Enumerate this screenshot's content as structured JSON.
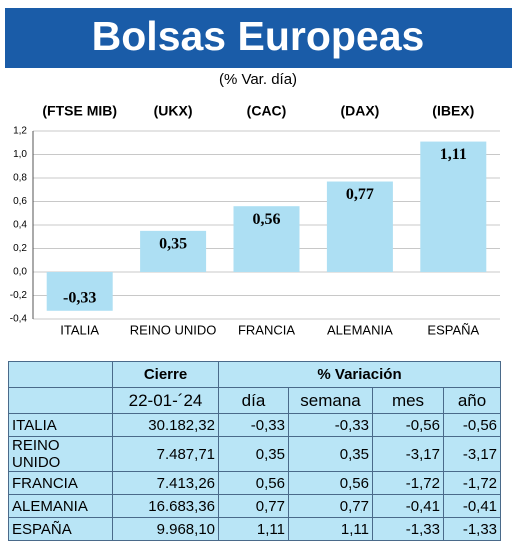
{
  "chart_data": {
    "type": "bar",
    "title": "Bolsas Europeas",
    "subtitle": "(% Var. día)",
    "index_labels": [
      "(FTSE MIB)",
      "(UKX)",
      "(CAC)",
      "(DAX)",
      "(IBEX)"
    ],
    "categories": [
      "ITALIA",
      "REINO UNIDO",
      "FRANCIA",
      "ALEMANIA",
      "ESPAÑA"
    ],
    "values": [
      -0.33,
      0.35,
      0.56,
      0.77,
      1.11
    ],
    "value_labels": [
      "-0,33",
      "0,35",
      "0,56",
      "0,77",
      "1,11"
    ],
    "color": "#addff3",
    "ylim": [
      -0.4,
      1.2
    ],
    "yticks": [
      {
        "value": -0.4,
        "label": "-0,4"
      },
      {
        "value": -0.2,
        "label": "-0,2"
      },
      {
        "value": 0,
        "label": "0,0"
      },
      {
        "value": 0.2,
        "label": "0,2"
      },
      {
        "value": 0.4,
        "label": "0,4"
      },
      {
        "value": 0.6,
        "label": "0,6"
      },
      {
        "value": 0.8,
        "label": "0,8"
      },
      {
        "value": 1.0,
        "label": "1,0"
      },
      {
        "value": 1.2,
        "label": "1,2"
      }
    ],
    "grid": true
  },
  "table": {
    "header_top": [
      "Cierre",
      "% Variación"
    ],
    "header": [
      "22-01-´24",
      "día",
      "semana",
      "mes",
      "año"
    ],
    "rows": [
      [
        "ITALIA",
        "30.182,32",
        "-0,33",
        "-0,33",
        "-0,56",
        "-0,56"
      ],
      [
        "REINO UNIDO",
        "7.487,71",
        "0,35",
        "0,35",
        "-3,17",
        "-3,17"
      ],
      [
        "FRANCIA",
        "7.413,26",
        "0,56",
        "0,56",
        "-1,72",
        "-1,72"
      ],
      [
        "ALEMANIA",
        "16.683,36",
        "0,77",
        "0,77",
        "-0,41",
        "-0,41"
      ],
      [
        "ESPAÑA",
        "9.968,10",
        "1,11",
        "1,11",
        "-1,33",
        "-1,33"
      ]
    ]
  }
}
